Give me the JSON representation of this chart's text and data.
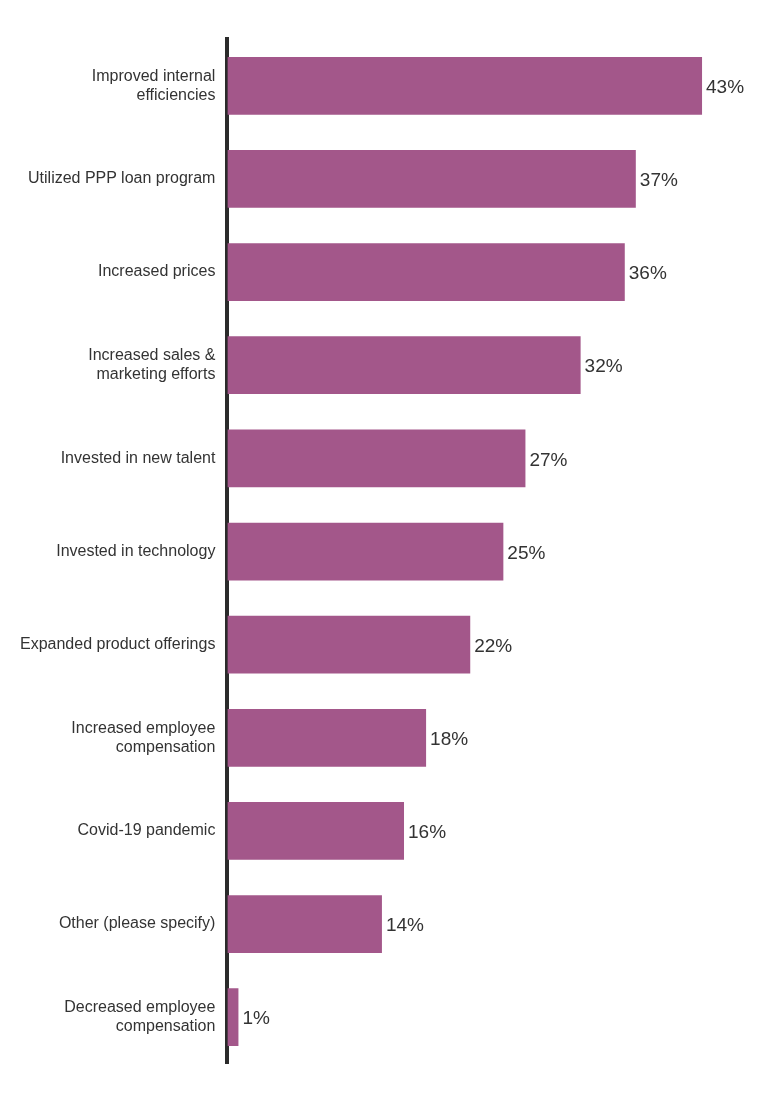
{
  "chart_data": {
    "type": "bar",
    "orientation": "horizontal",
    "categories": [
      "Improved internal efficiencies",
      "Utilized PPP loan program",
      "Increased prices",
      "Increased sales & marketing efforts",
      "Invested in new talent",
      "Invested in technology",
      "Expanded product offerings",
      "Increased employee compensation",
      "Covid-19 pandemic",
      "Other (please specify)",
      "Decreased employee compensation"
    ],
    "values": [
      43,
      37,
      36,
      32,
      27,
      25,
      22,
      18,
      16,
      14,
      1
    ],
    "value_labels": [
      "43%",
      "37%",
      "36%",
      "32%",
      "27%",
      "25%",
      "22%",
      "18%",
      "16%",
      "14%",
      "1%"
    ],
    "color": "#a3578a"
  }
}
